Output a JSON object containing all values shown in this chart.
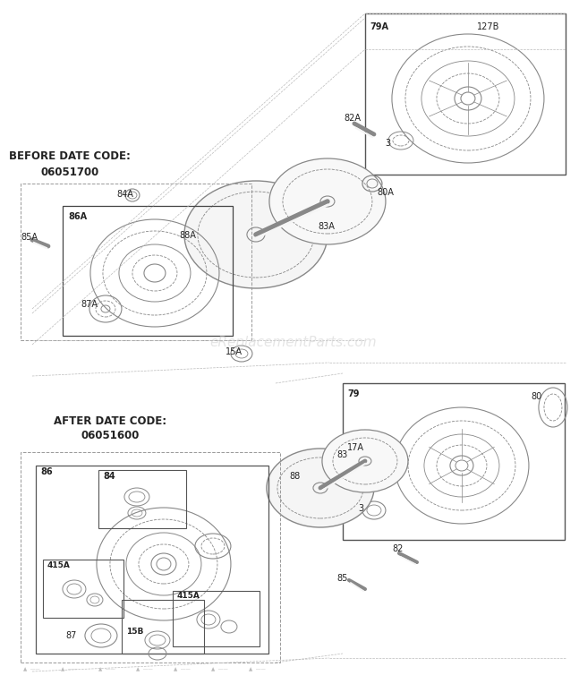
{
  "bg_color": "#ffffff",
  "line_color": "#555555",
  "label_color": "#222222",
  "watermark_color": "#cccccc",
  "watermark_text": "eReplacementParts.com",
  "before_label": "BEFORE DATE CODE:\n06051700",
  "after_label": "AFTER DATE CODE:\n06051600"
}
